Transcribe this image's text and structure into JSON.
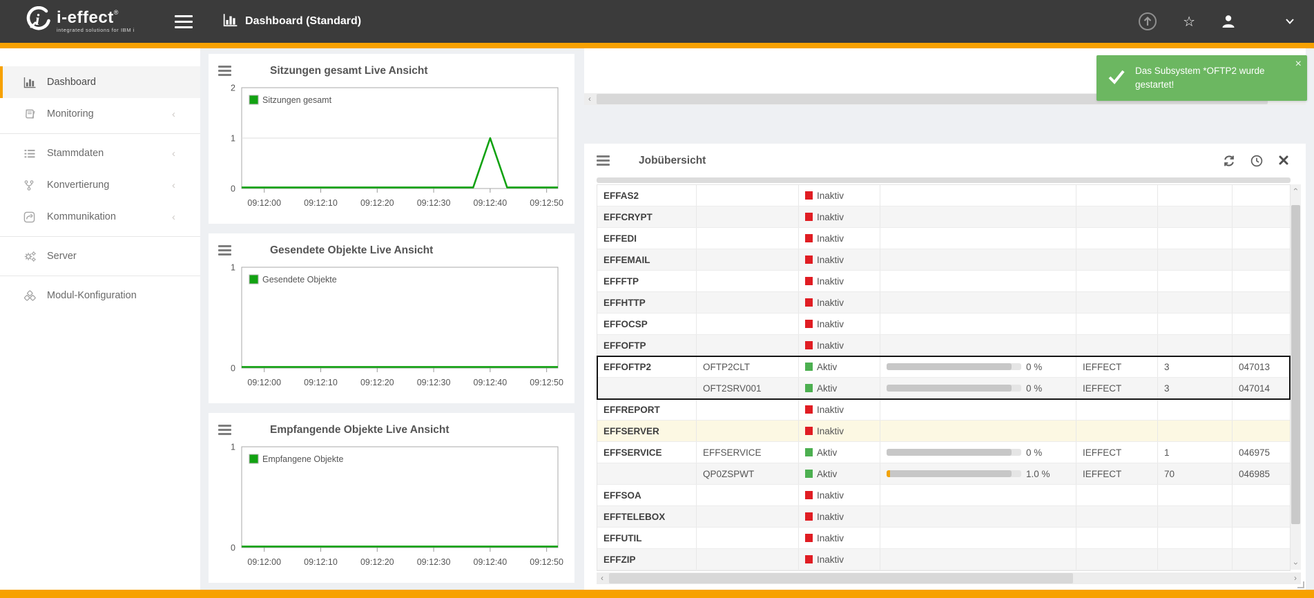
{
  "header": {
    "brand": "i-effect",
    "brand_reg": "®",
    "tagline": "integrated solutions for IBM i",
    "title": "Dashboard (Standard)"
  },
  "colors": {
    "accent_orange": "#F7A100",
    "header_bg": "#3B3B3B",
    "page_bg": "#EEF0F3",
    "chart_line_green": "#12A212",
    "status_active_green": "#4CAF50",
    "status_inactive_red": "#E01D23",
    "toast_green": "#6CB761",
    "selected_border": "#141414",
    "warning_row_bg": "#FCF8E3"
  },
  "icons": {
    "scroll_left": "‹",
    "scroll_right": "›",
    "toast_close": "×",
    "star": "☆",
    "chevron_collapsed": "‹"
  },
  "sidebar": {
    "items": [
      {
        "label": "Dashboard",
        "icon": "bar-chart-icon",
        "active": true,
        "expandable": false,
        "divider_after": false
      },
      {
        "label": "Monitoring",
        "icon": "book-icon",
        "active": false,
        "expandable": true,
        "divider_after": true
      },
      {
        "label": "Stammdaten",
        "icon": "list-icon",
        "active": false,
        "expandable": true,
        "divider_after": false
      },
      {
        "label": "Konvertierung",
        "icon": "fork-icon",
        "active": false,
        "expandable": true,
        "divider_after": false
      },
      {
        "label": "Kommunikation",
        "icon": "share-icon",
        "active": false,
        "expandable": true,
        "divider_after": true
      },
      {
        "label": "Server",
        "icon": "gears-icon",
        "active": false,
        "expandable": false,
        "divider_after": true
      },
      {
        "label": "Modul-Konfiguration",
        "icon": "cubes-icon",
        "active": false,
        "expandable": false,
        "divider_after": false
      }
    ]
  },
  "toast": {
    "message": "Das Subsystem *OFTP2 wurde gestartet!"
  },
  "job_panel": {
    "title": "Jobübersicht",
    "rows": [
      {
        "subsystem": "EFFAS2",
        "job": "",
        "status": "Inaktiv"
      },
      {
        "subsystem": "EFFCRYPT",
        "job": "",
        "status": "Inaktiv"
      },
      {
        "subsystem": "EFFEDI",
        "job": "",
        "status": "Inaktiv"
      },
      {
        "subsystem": "EFFEMAIL",
        "job": "",
        "status": "Inaktiv"
      },
      {
        "subsystem": "EFFFTP",
        "job": "",
        "status": "Inaktiv"
      },
      {
        "subsystem": "EFFHTTP",
        "job": "",
        "status": "Inaktiv"
      },
      {
        "subsystem": "EFFOCSP",
        "job": "",
        "status": "Inaktiv"
      },
      {
        "subsystem": "EFFOFTP",
        "job": "",
        "status": "Inaktiv"
      },
      {
        "subsystem": "EFFOFTP2",
        "job": "OFTP2CLT",
        "status": "Aktiv",
        "progress_label": "0 %",
        "progress_pct": 0,
        "user": "IEFFECT",
        "threads": "3",
        "jobnr": "047013",
        "selected": true
      },
      {
        "subsystem": "",
        "job": "OFT2SRV001",
        "status": "Aktiv",
        "progress_label": "0 %",
        "progress_pct": 0,
        "user": "IEFFECT",
        "threads": "3",
        "jobnr": "047014",
        "selected": true
      },
      {
        "subsystem": "EFFREPORT",
        "job": "",
        "status": "Inaktiv"
      },
      {
        "subsystem": "EFFSERVER",
        "job": "",
        "status": "Inaktiv",
        "warning": true
      },
      {
        "subsystem": "EFFSERVICE",
        "job": "EFFSERVICE",
        "status": "Aktiv",
        "progress_label": "0 %",
        "progress_pct": 0,
        "user": "IEFFECT",
        "threads": "1",
        "jobnr": "046975"
      },
      {
        "subsystem": "",
        "job": "QP0ZSPWT",
        "status": "Aktiv",
        "progress_label": "1.0 %",
        "progress_pct": 1,
        "user": "IEFFECT",
        "threads": "70",
        "jobnr": "046985"
      },
      {
        "subsystem": "EFFSOA",
        "job": "",
        "status": "Inaktiv"
      },
      {
        "subsystem": "EFFTELEBOX",
        "job": "",
        "status": "Inaktiv"
      },
      {
        "subsystem": "EFFUTIL",
        "job": "",
        "status": "Inaktiv"
      },
      {
        "subsystem": "EFFZIP",
        "job": "",
        "status": "Inaktiv"
      }
    ]
  },
  "chart_data": [
    {
      "type": "line",
      "title": "Sitzungen gesamt Live Ansicht",
      "legend": [
        "Sitzungen gesamt"
      ],
      "legend_position": "top-left",
      "grid": true,
      "ylim": [
        0,
        2
      ],
      "yticks": [
        0,
        1,
        2
      ],
      "x_domain_seconds": [
        0,
        56
      ],
      "x_ticks": [
        {
          "t": 4,
          "label": "09:12:00"
        },
        {
          "t": 14,
          "label": "09:12:10"
        },
        {
          "t": 24,
          "label": "09:12:20"
        },
        {
          "t": 34,
          "label": "09:12:30"
        },
        {
          "t": 44,
          "label": "09:12:40"
        },
        {
          "t": 54,
          "label": "09:12:50"
        }
      ],
      "series": [
        {
          "name": "Sitzungen gesamt",
          "color": "#12A212",
          "points": [
            [
              0,
              0
            ],
            [
              41,
              0
            ],
            [
              44,
              1
            ],
            [
              47,
              0
            ],
            [
              56,
              0
            ]
          ]
        }
      ]
    },
    {
      "type": "line",
      "title": "Gesendete Objekte Live Ansicht",
      "legend": [
        "Gesendete Objekte"
      ],
      "legend_position": "top-left",
      "grid": true,
      "ylim": [
        0,
        1
      ],
      "yticks": [
        0,
        1
      ],
      "x_domain_seconds": [
        0,
        56
      ],
      "x_ticks": [
        {
          "t": 4,
          "label": "09:12:00"
        },
        {
          "t": 14,
          "label": "09:12:10"
        },
        {
          "t": 24,
          "label": "09:12:20"
        },
        {
          "t": 34,
          "label": "09:12:30"
        },
        {
          "t": 44,
          "label": "09:12:40"
        },
        {
          "t": 54,
          "label": "09:12:50"
        }
      ],
      "series": [
        {
          "name": "Gesendete Objekte",
          "color": "#12A212",
          "points": [
            [
              0,
              0
            ],
            [
              56,
              0
            ]
          ]
        }
      ]
    },
    {
      "type": "line",
      "title": "Empfangende Objekte Live Ansicht",
      "legend": [
        "Empfangene Objekte"
      ],
      "legend_position": "top-left",
      "grid": true,
      "ylim": [
        0,
        1
      ],
      "yticks": [
        0,
        1
      ],
      "x_domain_seconds": [
        0,
        56
      ],
      "x_ticks": [
        {
          "t": 4,
          "label": "09:12:00"
        },
        {
          "t": 14,
          "label": "09:12:10"
        },
        {
          "t": 24,
          "label": "09:12:20"
        },
        {
          "t": 34,
          "label": "09:12:30"
        },
        {
          "t": 44,
          "label": "09:12:40"
        },
        {
          "t": 54,
          "label": "09:12:50"
        }
      ],
      "series": [
        {
          "name": "Empfangene Objekte",
          "color": "#12A212",
          "points": [
            [
              0,
              0
            ],
            [
              56,
              0
            ]
          ]
        }
      ]
    }
  ]
}
